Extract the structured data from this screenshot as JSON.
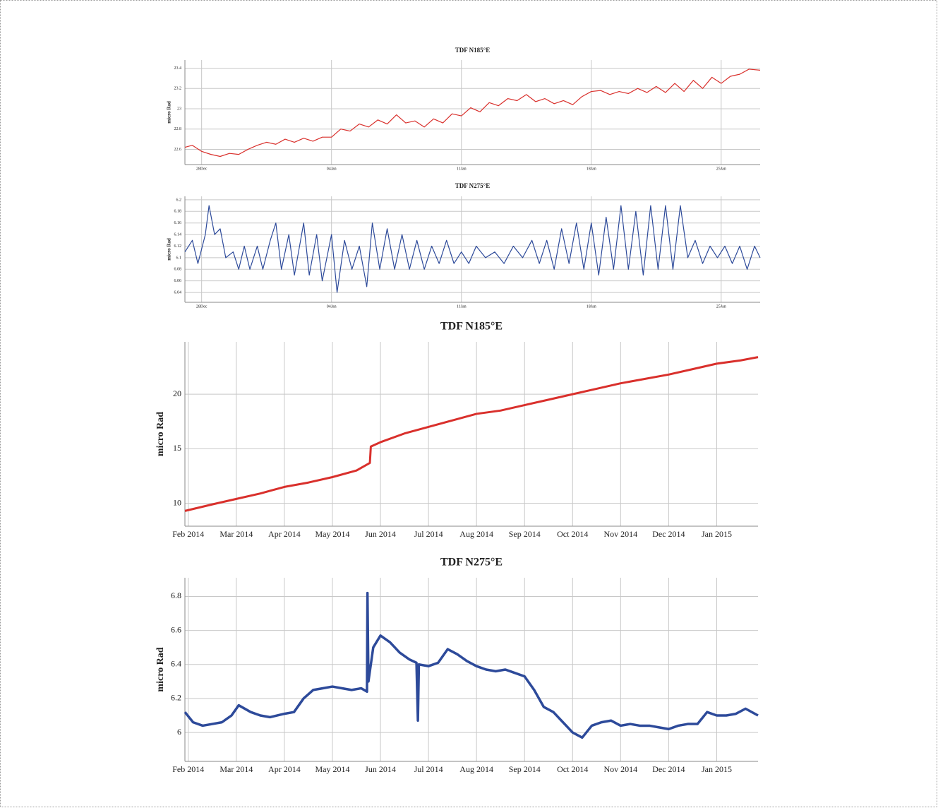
{
  "chart_data": [
    {
      "type": "line",
      "title": "TDF N185°E",
      "ylabel": "micro Rad",
      "color": "#d9302c",
      "grid": true,
      "x": [
        27.1,
        27.5,
        28,
        28.5,
        29,
        29.5,
        30,
        30.5,
        31,
        31.5,
        32,
        32.5,
        33,
        33.5,
        34,
        34.5,
        35,
        35.5,
        36,
        36.5,
        37,
        37.5,
        38,
        38.5,
        39,
        39.5,
        40,
        40.5,
        41,
        41.5,
        42,
        42.5,
        43,
        43.5,
        44,
        44.5,
        45,
        45.5,
        46,
        46.5,
        47,
        47.5,
        48,
        48.5,
        49,
        49.5,
        50,
        50.5,
        51,
        51.5,
        52,
        52.5,
        53,
        53.5,
        54,
        54.5,
        55,
        55.5,
        56,
        56.5,
        57,
        57.5,
        58.1
      ],
      "values": [
        22.62,
        22.64,
        22.58,
        22.55,
        22.53,
        22.56,
        22.55,
        22.6,
        22.64,
        22.67,
        22.65,
        22.7,
        22.67,
        22.71,
        22.68,
        22.72,
        22.72,
        22.8,
        22.78,
        22.85,
        22.82,
        22.89,
        22.85,
        22.94,
        22.86,
        22.88,
        22.82,
        22.9,
        22.86,
        22.95,
        22.93,
        23.01,
        22.97,
        23.06,
        23.03,
        23.1,
        23.08,
        23.14,
        23.07,
        23.1,
        23.05,
        23.08,
        23.04,
        23.12,
        23.17,
        23.18,
        23.14,
        23.17,
        23.15,
        23.2,
        23.16,
        23.22,
        23.16,
        23.25,
        23.17,
        23.28,
        23.2,
        23.31,
        23.25,
        23.32,
        23.34,
        23.39,
        23.38
      ],
      "xlim": [
        27.1,
        58.1
      ],
      "xticks": [
        {
          "value": 28,
          "label": "28Dec"
        },
        {
          "value": 35,
          "label": "04Jan"
        },
        {
          "value": 42,
          "label": "11Jan"
        },
        {
          "value": 49,
          "label": "18Jan"
        },
        {
          "value": 56,
          "label": "25Jan"
        }
      ],
      "ylim": [
        22.45,
        23.48
      ],
      "yticks": [
        22.6,
        22.8,
        23,
        23.2,
        23.4
      ]
    },
    {
      "type": "line",
      "title": "TDF N275°E",
      "ylabel": "micro Rad",
      "color": "#2d4a9a",
      "grid": true,
      "x": [
        27.1,
        27.5,
        27.8,
        28.2,
        28.4,
        28.7,
        29,
        29.3,
        29.7,
        30,
        30.3,
        30.6,
        31,
        31.3,
        31.7,
        32,
        32.3,
        32.7,
        33,
        33.5,
        33.8,
        34.2,
        34.5,
        35,
        35.3,
        35.7,
        36.1,
        36.5,
        36.9,
        37.2,
        37.6,
        38,
        38.4,
        38.8,
        39.2,
        39.6,
        40,
        40.4,
        40.8,
        41.2,
        41.6,
        42,
        42.4,
        42.8,
        43.3,
        43.8,
        44.3,
        44.8,
        45.3,
        45.8,
        46.2,
        46.6,
        47,
        47.4,
        47.8,
        48.2,
        48.6,
        49,
        49.4,
        49.8,
        50.2,
        50.6,
        51,
        51.4,
        51.8,
        52.2,
        52.6,
        53,
        53.4,
        53.8,
        54.2,
        54.6,
        55,
        55.4,
        55.8,
        56.2,
        56.6,
        57,
        57.4,
        57.8,
        58.1
      ],
      "values": [
        6.11,
        6.13,
        6.09,
        6.14,
        6.19,
        6.14,
        6.15,
        6.1,
        6.11,
        6.08,
        6.12,
        6.08,
        6.12,
        6.08,
        6.13,
        6.16,
        6.08,
        6.14,
        6.07,
        6.16,
        6.07,
        6.14,
        6.06,
        6.14,
        6.04,
        6.13,
        6.08,
        6.12,
        6.05,
        6.16,
        6.08,
        6.15,
        6.08,
        6.14,
        6.08,
        6.13,
        6.08,
        6.12,
        6.09,
        6.13,
        6.09,
        6.11,
        6.09,
        6.12,
        6.1,
        6.11,
        6.09,
        6.12,
        6.1,
        6.13,
        6.09,
        6.13,
        6.08,
        6.15,
        6.09,
        6.16,
        6.08,
        6.16,
        6.07,
        6.17,
        6.08,
        6.19,
        6.08,
        6.18,
        6.07,
        6.19,
        6.08,
        6.19,
        6.08,
        6.19,
        6.1,
        6.13,
        6.09,
        6.12,
        6.1,
        6.12,
        6.09,
        6.12,
        6.08,
        6.12,
        6.1
      ],
      "xlim": [
        27.1,
        58.1
      ],
      "xticks": [
        {
          "value": 28,
          "label": "28Dec"
        },
        {
          "value": 35,
          "label": "04Jan"
        },
        {
          "value": 42,
          "label": "11Jan"
        },
        {
          "value": 49,
          "label": "18Jan"
        },
        {
          "value": 56,
          "label": "25Jan"
        }
      ],
      "ylim": [
        6.023,
        6.206
      ],
      "yticks": [
        6.04,
        6.06,
        6.08,
        6.1,
        6.12,
        6.14,
        6.16,
        6.18,
        6.2
      ]
    },
    {
      "type": "line",
      "title": "TDF N185°E",
      "ylabel": "micro Rad",
      "color": "#d9302c",
      "grid": true,
      "x": [
        1.93,
        2.5,
        3,
        3.5,
        4,
        4.5,
        5,
        5.5,
        5.78,
        5.8,
        6,
        6.5,
        7,
        7.5,
        8,
        8.5,
        9,
        9.5,
        10,
        10.5,
        11,
        11.5,
        12,
        12.5,
        13,
        13.5,
        13.86
      ],
      "values": [
        9.3,
        9.9,
        10.4,
        10.9,
        11.5,
        11.9,
        12.4,
        13,
        13.7,
        15.2,
        15.6,
        16.4,
        17,
        17.6,
        18.2,
        18.5,
        19,
        19.5,
        20,
        20.5,
        21,
        21.4,
        21.8,
        22.3,
        22.8,
        23.1,
        23.4
      ],
      "xlim": [
        1.93,
        13.86
      ],
      "xticks": [
        {
          "value": 2,
          "label": "Feb 2014"
        },
        {
          "value": 3,
          "label": "Mar 2014"
        },
        {
          "value": 4,
          "label": "Apr 2014"
        },
        {
          "value": 5,
          "label": "May 2014"
        },
        {
          "value": 6,
          "label": "Jun 2014"
        },
        {
          "value": 7,
          "label": "Jul 2014"
        },
        {
          "value": 8,
          "label": "Aug 2014"
        },
        {
          "value": 9,
          "label": "Sep 2014"
        },
        {
          "value": 10,
          "label": "Oct 2014"
        },
        {
          "value": 11,
          "label": "Nov 2014"
        },
        {
          "value": 12,
          "label": "Dec 2014"
        },
        {
          "value": 13,
          "label": "Jan 2015"
        }
      ],
      "ylim": [
        7.9,
        24.8
      ],
      "yticks": [
        10,
        15,
        20
      ]
    },
    {
      "type": "line",
      "title": "TDF N275°E",
      "ylabel": "micro Rad",
      "color": "#2d4a9a",
      "grid": true,
      "x": [
        1.93,
        2.1,
        2.3,
        2.5,
        2.7,
        2.9,
        3.05,
        3.3,
        3.5,
        3.7,
        4,
        4.2,
        4.4,
        4.6,
        4.8,
        5,
        5.2,
        5.4,
        5.6,
        5.72,
        5.73,
        5.75,
        5.85,
        6,
        6.2,
        6.4,
        6.6,
        6.75,
        6.78,
        6.8,
        7,
        7.2,
        7.4,
        7.6,
        7.8,
        8,
        8.2,
        8.4,
        8.6,
        8.8,
        9,
        9.2,
        9.4,
        9.6,
        9.8,
        10,
        10.2,
        10.4,
        10.6,
        10.8,
        11,
        11.2,
        11.4,
        11.6,
        11.8,
        12,
        12.2,
        12.4,
        12.6,
        12.8,
        13,
        13.2,
        13.4,
        13.6,
        13.86
      ],
      "values": [
        6.12,
        6.06,
        6.04,
        6.05,
        6.06,
        6.1,
        6.16,
        6.12,
        6.1,
        6.09,
        6.11,
        6.12,
        6.2,
        6.25,
        6.26,
        6.27,
        6.26,
        6.25,
        6.26,
        6.24,
        6.82,
        6.3,
        6.5,
        6.57,
        6.53,
        6.47,
        6.43,
        6.41,
        6.07,
        6.4,
        6.39,
        6.41,
        6.49,
        6.46,
        6.42,
        6.39,
        6.37,
        6.36,
        6.37,
        6.35,
        6.33,
        6.25,
        6.15,
        6.12,
        6.06,
        6,
        5.97,
        6.04,
        6.06,
        6.07,
        6.04,
        6.05,
        6.04,
        6.04,
        6.03,
        6.02,
        6.04,
        6.05,
        6.05,
        6.12,
        6.1,
        6.1,
        6.11,
        6.14,
        6.1
      ],
      "xlim": [
        1.93,
        13.86
      ],
      "xticks": [
        {
          "value": 2,
          "label": "Feb 2014"
        },
        {
          "value": 3,
          "label": "Mar 2014"
        },
        {
          "value": 4,
          "label": "Apr 2014"
        },
        {
          "value": 5,
          "label": "May 2014"
        },
        {
          "value": 6,
          "label": "Jun 2014"
        },
        {
          "value": 7,
          "label": "Jul 2014"
        },
        {
          "value": 8,
          "label": "Aug 2014"
        },
        {
          "value": 9,
          "label": "Sep 2014"
        },
        {
          "value": 10,
          "label": "Oct 2014"
        },
        {
          "value": 11,
          "label": "Nov 2014"
        },
        {
          "value": 12,
          "label": "Dec 2014"
        },
        {
          "value": 13,
          "label": "Jan 2015"
        }
      ],
      "ylim": [
        5.83,
        6.91
      ],
      "yticks": [
        6,
        6.2,
        6.4,
        6.6,
        6.8
      ]
    }
  ]
}
